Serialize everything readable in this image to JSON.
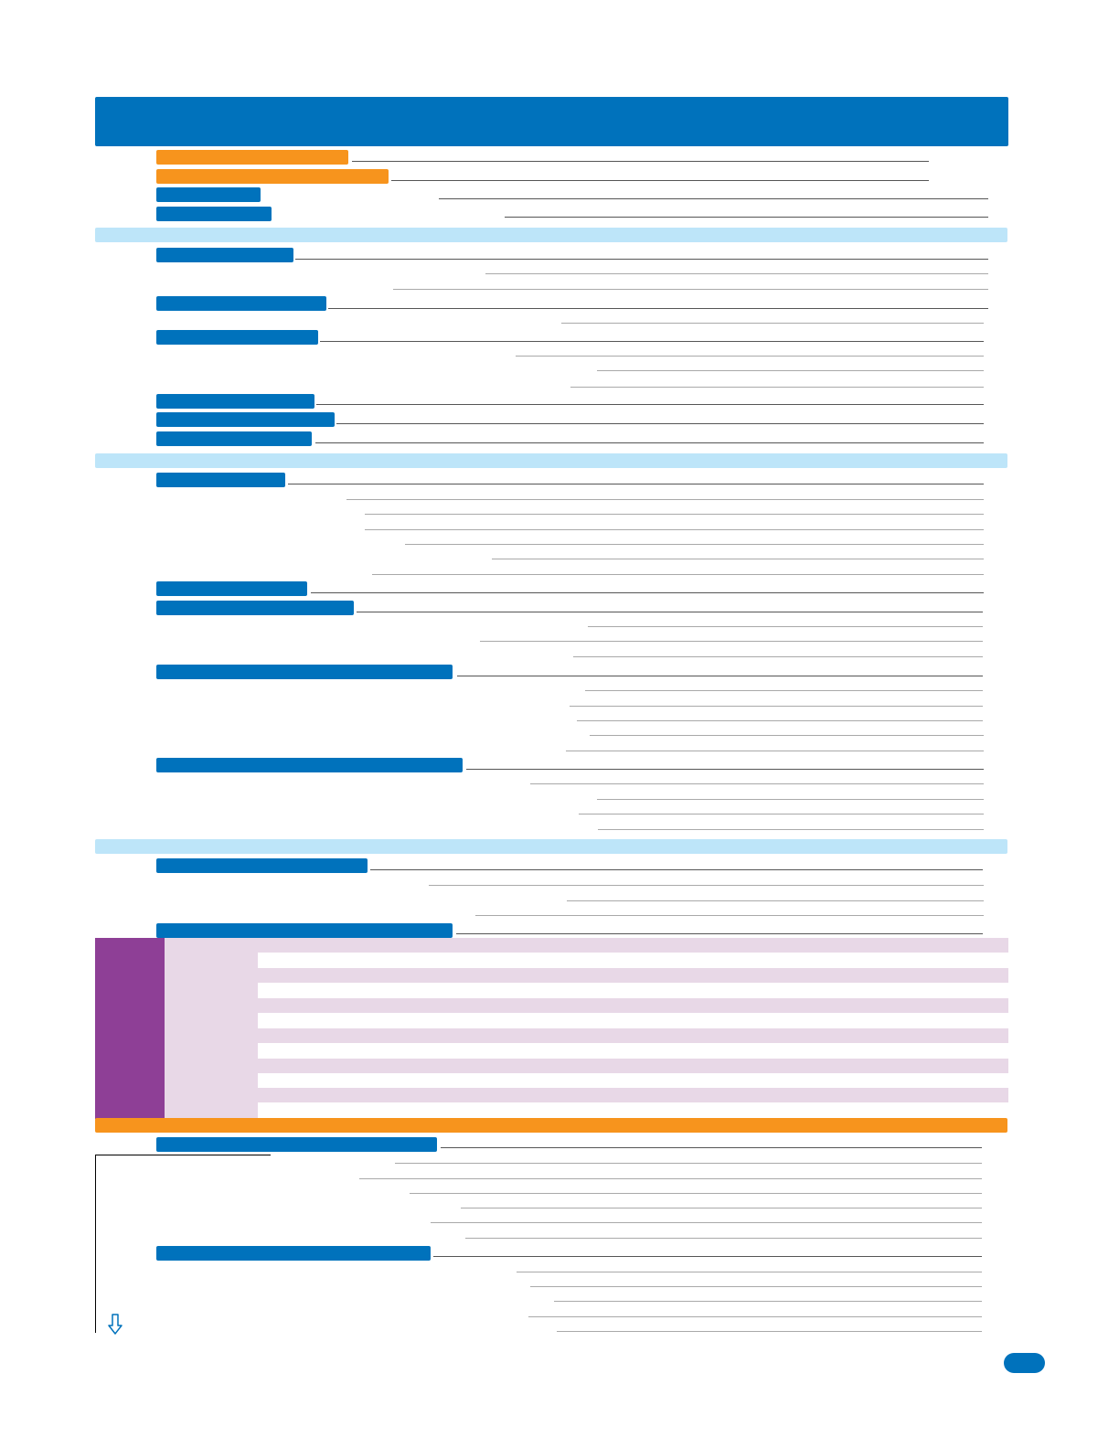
{
  "colors": {
    "primary_blue": "#0072bc",
    "light_blue": "#bde5f9",
    "orange": "#f7941d",
    "purple": "#8e3f96",
    "lilac": "#e8d8e7"
  },
  "icons": {
    "down_arrow": "down-arrow-icon"
  }
}
